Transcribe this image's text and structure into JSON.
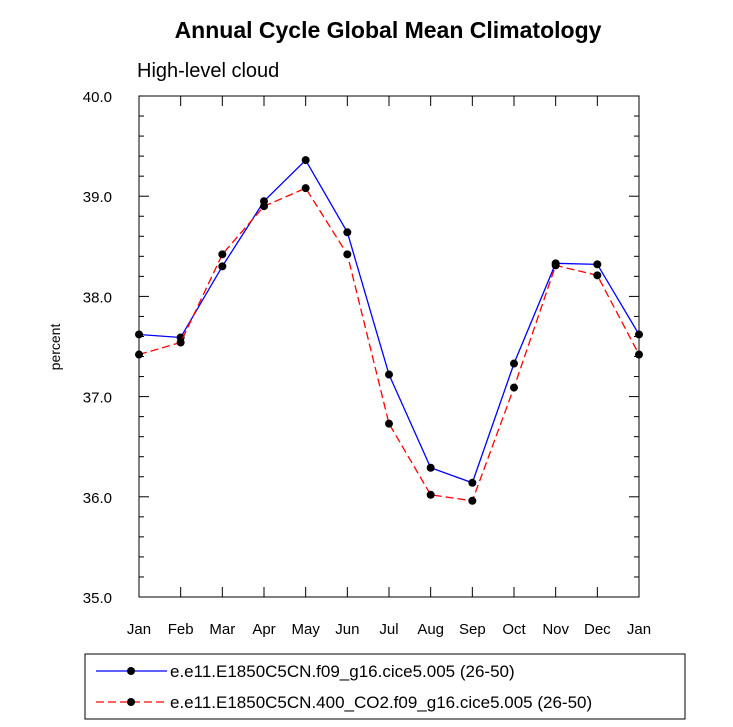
{
  "chart_data": {
    "type": "line",
    "title": "Annual Cycle Global Mean Climatology",
    "subtitle": "High-level cloud",
    "xlabel": "",
    "ylabel": "percent",
    "categories": [
      "Jan",
      "Feb",
      "Mar",
      "Apr",
      "May",
      "Jun",
      "Jul",
      "Aug",
      "Sep",
      "Oct",
      "Nov",
      "Dec",
      "Jan"
    ],
    "ylim": [
      35.0,
      40.0
    ],
    "yticks": [
      "35.0",
      "36.0",
      "37.0",
      "38.0",
      "39.0",
      "40.0"
    ],
    "grid": false,
    "legend_position": "bottom",
    "series": [
      {
        "name": "e.e11.E1850C5CN.f09_g16.cice5.005 (26-50)",
        "color": "#0000ff",
        "line_style": "solid",
        "marker": "filled-circle",
        "values": [
          37.62,
          37.59,
          38.3,
          38.95,
          39.36,
          38.64,
          37.22,
          36.29,
          36.14,
          37.33,
          38.33,
          38.32,
          37.62
        ]
      },
      {
        "name": "e.e11.E1850C5CN.400_CO2.f09_g16.cice5.005 (26-50)",
        "color": "#ff0000",
        "line_style": "dashed",
        "marker": "filled-circle",
        "values": [
          37.42,
          37.54,
          38.42,
          38.9,
          39.08,
          38.42,
          36.73,
          36.02,
          35.96,
          37.09,
          38.31,
          38.21,
          37.42
        ]
      }
    ]
  }
}
